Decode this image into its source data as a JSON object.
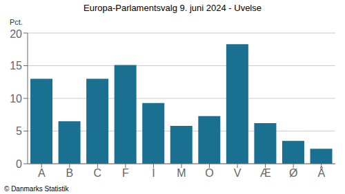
{
  "chart_data": {
    "type": "bar",
    "title": "Europa-Parlamentsvalg 9. juni 2024 - Uvelse",
    "categories": [
      "A",
      "B",
      "C",
      "F",
      "I",
      "M",
      "O",
      "V",
      "Æ",
      "Ø",
      "Å"
    ],
    "values": [
      13.0,
      6.5,
      13.0,
      15.1,
      9.3,
      5.8,
      7.3,
      18.3,
      6.2,
      3.5,
      2.3
    ],
    "color": "#1a7090",
    "ylabel": "Pct.",
    "ylim": [
      0,
      20
    ],
    "yticks": [
      0,
      5,
      10,
      15,
      20
    ],
    "grid": true,
    "annotations": [
      "© Danmarks Statistik"
    ]
  }
}
